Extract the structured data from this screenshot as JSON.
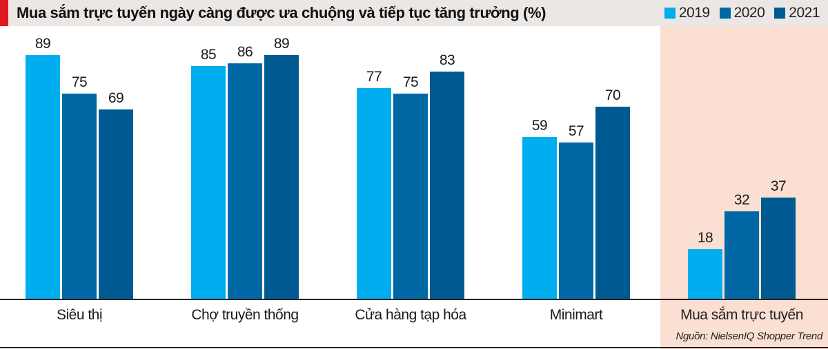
{
  "header": {
    "title": "Mua sắm trực tuyến ngày càng được ưa chuộng và tiếp tục tăng trưởng (%)"
  },
  "legend": [
    {
      "label": "2019",
      "color": "#00aeef"
    },
    {
      "label": "2020",
      "color": "#0069a5"
    },
    {
      "label": "2021",
      "color": "#005a92"
    }
  ],
  "source": "Nguồn: NielsenIQ Shopper Trend",
  "colors": {
    "accent": "#e0181f",
    "header_bg": "#ebe7e4",
    "highlight_bg": "#fbdfd3"
  },
  "chart_data": {
    "type": "bar",
    "title": "Mua sắm trực tuyến ngày càng được ưa chuộng và tiếp tục tăng trưởng (%)",
    "xlabel": "",
    "ylabel": "%",
    "ylim": [
      0,
      100
    ],
    "grid": false,
    "legend_position": "top-right",
    "categories": [
      "Siêu thị",
      "Chợ truyền thống",
      "Cửa hàng tạp hóa",
      "Minimart",
      "Mua sắm trực tuyến"
    ],
    "highlighted_category": "Mua sắm trực tuyến",
    "series": [
      {
        "name": "2019",
        "values": [
          89,
          85,
          77,
          59,
          18
        ]
      },
      {
        "name": "2020",
        "values": [
          75,
          86,
          75,
          57,
          32
        ]
      },
      {
        "name": "2021",
        "values": [
          69,
          89,
          83,
          70,
          37
        ]
      }
    ],
    "annotations": [
      "Nguồn: NielsenIQ Shopper Trend"
    ]
  }
}
